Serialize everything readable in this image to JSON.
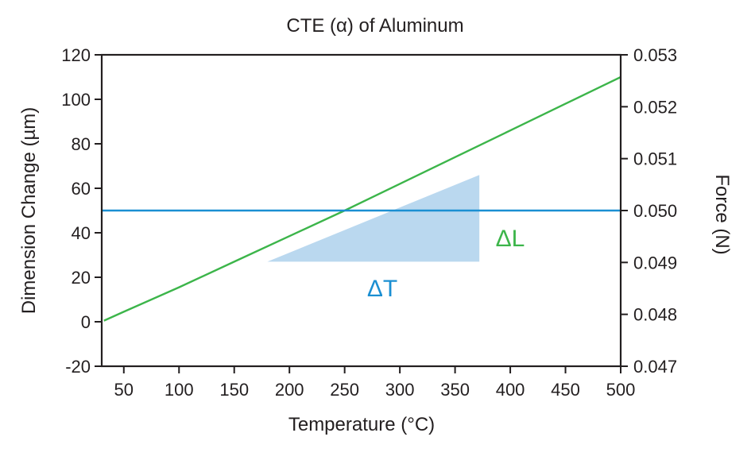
{
  "chart_data": {
    "type": "line",
    "title": "CTE (α) of Aluminum",
    "xlabel": "Temperature (°C)",
    "ylabel": "Dimension Change (µm)",
    "y2label": "Force (N)",
    "xlim": [
      30,
      500
    ],
    "ylim": [
      -20,
      120
    ],
    "y2lim": [
      0.047,
      0.053
    ],
    "x_ticks": [
      50,
      100,
      150,
      200,
      250,
      300,
      350,
      400,
      450,
      500
    ],
    "y_ticks": [
      -20,
      0,
      20,
      40,
      60,
      80,
      100,
      120
    ],
    "y2_ticks": [
      "0.047",
      "0.048",
      "0.049",
      "0.050",
      "0.051",
      "0.052",
      "0.053"
    ],
    "grid": false,
    "series": [
      {
        "axis": "left",
        "color": "#3cb54a",
        "x": [
          32,
          50,
          100,
          150,
          200,
          250,
          300,
          350,
          400,
          450,
          500
        ],
        "y": [
          0.5,
          4.5,
          15.5,
          27,
          38.5,
          50,
          62,
          74,
          86,
          98,
          110
        ]
      },
      {
        "axis": "right",
        "color": "#1b8fd2",
        "x": [
          30,
          500
        ],
        "y": [
          0.05,
          0.05
        ]
      }
    ],
    "annotations": [
      {
        "type": "shaded-triangle",
        "color": "#bad8ef",
        "x": [
          180,
          372,
          372
        ],
        "y": [
          27,
          27,
          66
        ]
      },
      {
        "type": "label",
        "text": "ΔT",
        "color": "#1b8fd2"
      },
      {
        "type": "label",
        "text": "ΔL",
        "color": "#3cb54a"
      }
    ]
  }
}
